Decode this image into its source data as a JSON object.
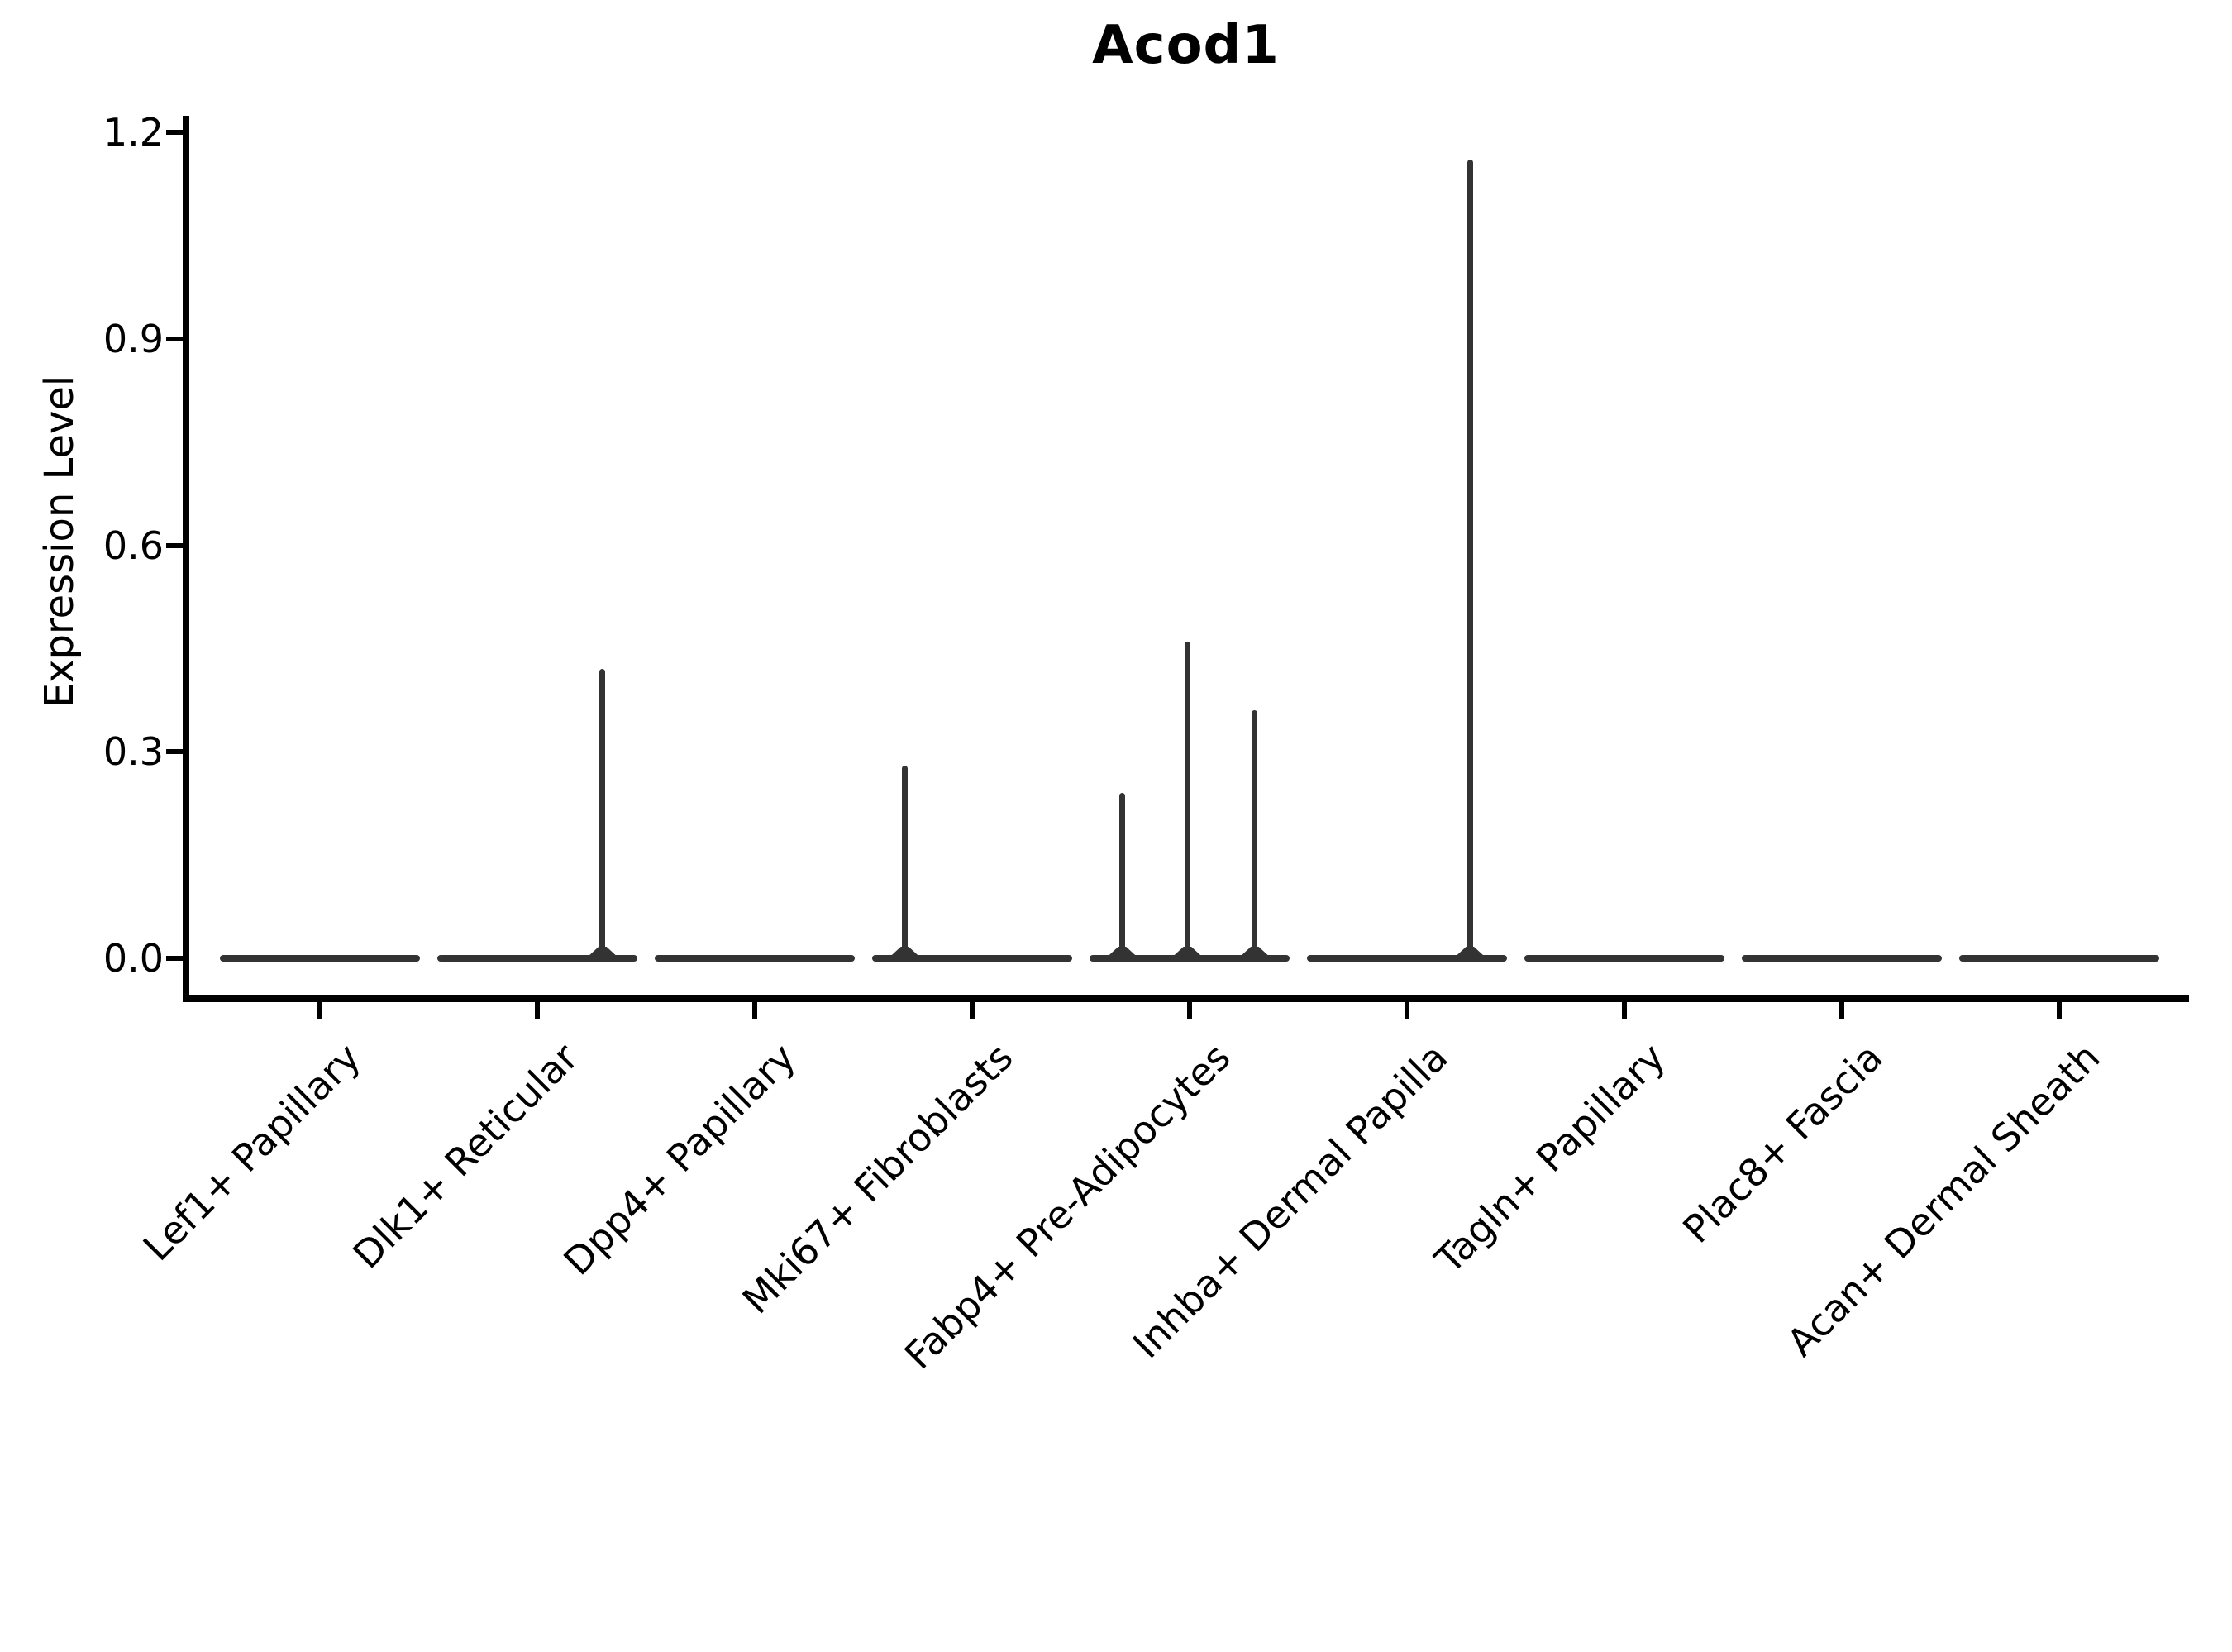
{
  "chart_data": {
    "type": "violin",
    "title": "Acod1",
    "ylabel": "Expression Level",
    "xlabel": "",
    "ylim": [
      -0.06,
      1.22
    ],
    "yticks": [
      1.2,
      0.9,
      0.6,
      0.3,
      0.0
    ],
    "grid": false,
    "legend": false,
    "line_color": "#333333",
    "axis_color": "#000000",
    "background_color": "#ffffff",
    "categories": [
      "Lef1+ Papillary",
      "Dlk1+ Reticular",
      "Dpp4+ Papillary",
      "Mki67+ Fibroblasts",
      "Fabp4+ Pre-Adipocytes",
      "Inhba+ Dermal Papilla",
      "Tagln+ Papillary",
      "Plac8+ Fascia",
      "Acan+ Dermal Sheath"
    ],
    "violins": [
      {
        "category": "Lef1+ Papillary",
        "zero_density_bar": true,
        "spikes": []
      },
      {
        "category": "Dlk1+ Reticular",
        "zero_density_bar": true,
        "spikes": [
          {
            "offset": 0.3,
            "value": 0.42
          }
        ]
      },
      {
        "category": "Dpp4+ Papillary",
        "zero_density_bar": true,
        "spikes": []
      },
      {
        "category": "Mki67+ Fibroblasts",
        "zero_density_bar": true,
        "spikes": [
          {
            "offset": -0.31,
            "value": 0.28
          }
        ]
      },
      {
        "category": "Fabp4+ Pre-Adipocytes",
        "zero_density_bar": true,
        "spikes": [
          {
            "offset": -0.31,
            "value": 0.24
          },
          {
            "offset": -0.01,
            "value": 0.46
          },
          {
            "offset": 0.3,
            "value": 0.36
          }
        ]
      },
      {
        "category": "Inhba+ Dermal Papilla",
        "zero_density_bar": true,
        "spikes": [
          {
            "offset": 0.29,
            "value": 1.16
          }
        ]
      },
      {
        "category": "Tagln+ Papillary",
        "zero_density_bar": true,
        "spikes": []
      },
      {
        "category": "Plac8+ Fascia",
        "zero_density_bar": true,
        "spikes": []
      },
      {
        "category": "Acan+ Dermal Sheath",
        "zero_density_bar": true,
        "spikes": []
      }
    ]
  }
}
